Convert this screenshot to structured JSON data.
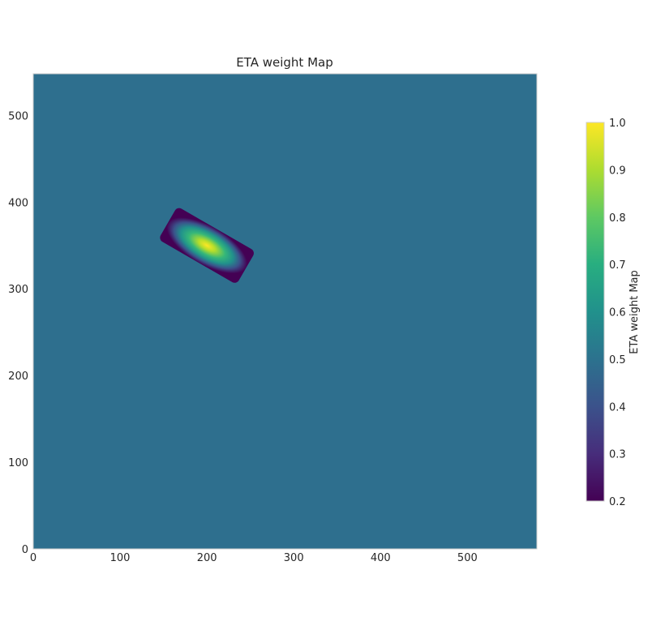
{
  "chart_data": {
    "type": "heatmap",
    "title": "ETA weight Map",
    "xlabel": "",
    "ylabel": "",
    "xlim": [
      0,
      580
    ],
    "ylim": [
      0,
      548
    ],
    "x_ticks": [
      0,
      100,
      200,
      300,
      400,
      500
    ],
    "y_ticks": [
      0,
      100,
      200,
      300,
      400,
      500
    ],
    "background_value": 0.5,
    "patch": {
      "center": [
        200,
        350
      ],
      "peak_value": 1.0,
      "edge_value": 0.2,
      "half_length": 52,
      "half_width": 22,
      "angle_deg": -30
    },
    "colorbar": {
      "label": "ETA weight Map",
      "colormap": "viridis",
      "range": [
        0.2,
        1.0
      ],
      "ticks": [
        0.2,
        0.3,
        0.4,
        0.5,
        0.6,
        0.7,
        0.8,
        0.9,
        1.0
      ]
    },
    "grid": false
  }
}
